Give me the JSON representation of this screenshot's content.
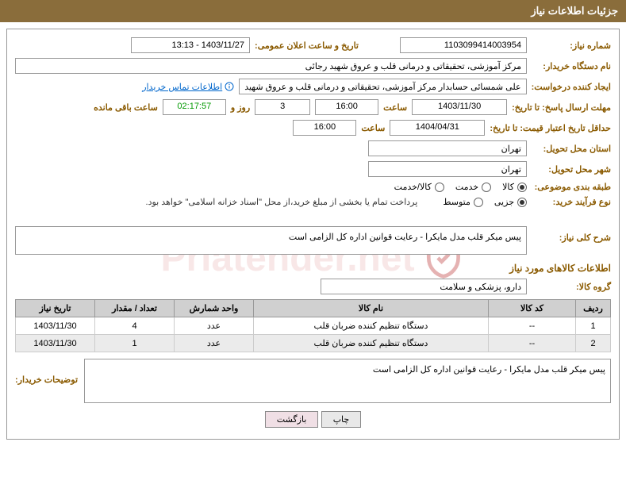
{
  "header": {
    "title": "جزئیات اطلاعات نیاز"
  },
  "watermark": {
    "text": "Priatender.net"
  },
  "fields": {
    "need_no_label": "شماره نیاز:",
    "need_no": "1103099414003954",
    "announce_label": "تاریخ و ساعت اعلان عمومی:",
    "announce": "1403/11/27 - 13:13",
    "buyer_label": "نام دستگاه خریدار:",
    "buyer": "مرکز آموزشی، تحقیقاتی و درمانی قلب و عروق شهید رجائی",
    "requester_label": "ایجاد کننده درخواست:",
    "requester": "علی شمسائی حسابدار مرکز آموزشی، تحقیقاتی و درمانی قلب و عروق شهید",
    "contact_link": "اطلاعات تماس خریدار",
    "deadline_label": "مهلت ارسال پاسخ: تا تاریخ:",
    "deadline_date": "1403/11/30",
    "hour_label": "ساعت",
    "deadline_time": "16:00",
    "days_val": "3",
    "days_label": "روز و",
    "countdown": "02:17:57",
    "remain_label": "ساعت باقی مانده",
    "validity_label": "حداقل تاریخ اعتبار قیمت: تا تاریخ:",
    "validity_date": "1404/04/31",
    "validity_time": "16:00",
    "province_label": "استان محل تحویل:",
    "province": "تهران",
    "city_label": "شهر محل تحویل:",
    "city": "تهران",
    "category_label": "طبقه بندی موضوعی:",
    "proc_type_label": "نوع فرآیند خرید:",
    "payment_note": "پرداخت تمام یا بخشی از مبلغ خرید،از محل \"اسناد خزانه اسلامی\" خواهد بود."
  },
  "category_opts": {
    "goods": "کالا",
    "service": "خدمت",
    "goods_service": "کالا/خدمت"
  },
  "proc_opts": {
    "minor": "جزیی",
    "medium": "متوسط"
  },
  "desc": {
    "title_label": "شرح کلی نیاز:",
    "text": "پیس میکر قلب مدل مایکرا - رعایت قوانین اداره کل الزامی است"
  },
  "goods_section": {
    "title": "اطلاعات کالاهای مورد نیاز",
    "group_label": "گروه کالا:",
    "group": "دارو، پزشکی و سلامت"
  },
  "table": {
    "headers": {
      "row": "ردیف",
      "code": "کد کالا",
      "name": "نام کالا",
      "unit": "واحد شمارش",
      "qty": "تعداد / مقدار",
      "date": "تاریخ نیاز"
    },
    "rows": [
      {
        "n": "1",
        "code": "--",
        "name": "دستگاه تنظیم کننده ضربان قلب",
        "unit": "عدد",
        "qty": "4",
        "date": "1403/11/30"
      },
      {
        "n": "2",
        "code": "--",
        "name": "دستگاه تنظیم کننده ضربان قلب",
        "unit": "عدد",
        "qty": "1",
        "date": "1403/11/30"
      }
    ]
  },
  "notes": {
    "label": "توضیحات خریدار:",
    "text": "پیس میکر قلب مدل مایکرا - رعایت قوانین اداره کل الزامی است"
  },
  "buttons": {
    "print": "چاپ",
    "back": "بازگشت"
  },
  "colors": {
    "header_bg": "#8a6d3b",
    "label": "#8a5a00",
    "border": "#999999",
    "th_bg": "#d0d0d0"
  }
}
